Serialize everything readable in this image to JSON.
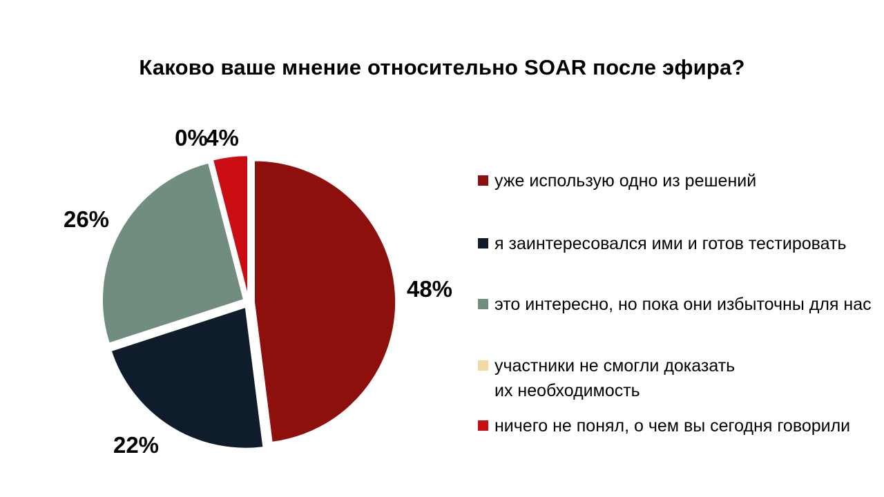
{
  "chart_data": {
    "type": "pie",
    "title": "Каково ваше мнение относительно SOAR после эфира?",
    "categories": [
      "уже использую одно из решений",
      "я заинтересовался ими и готов тестировать",
      "это интересно, но пока они избыточны для нас",
      "участники не смогли доказать\nих необходимость",
      "ничего не понял, о чем вы сегодня говорили"
    ],
    "values": [
      48,
      22,
      26,
      0,
      4
    ],
    "data_labels": [
      "48%",
      "22%",
      "26%",
      "0%",
      "4%"
    ],
    "colors": [
      "#8E100D",
      "#0E1C2B",
      "#718D80",
      "#F0DCA2",
      "#C90D12"
    ],
    "legend_position": "right",
    "background": "#FFFFFF"
  }
}
